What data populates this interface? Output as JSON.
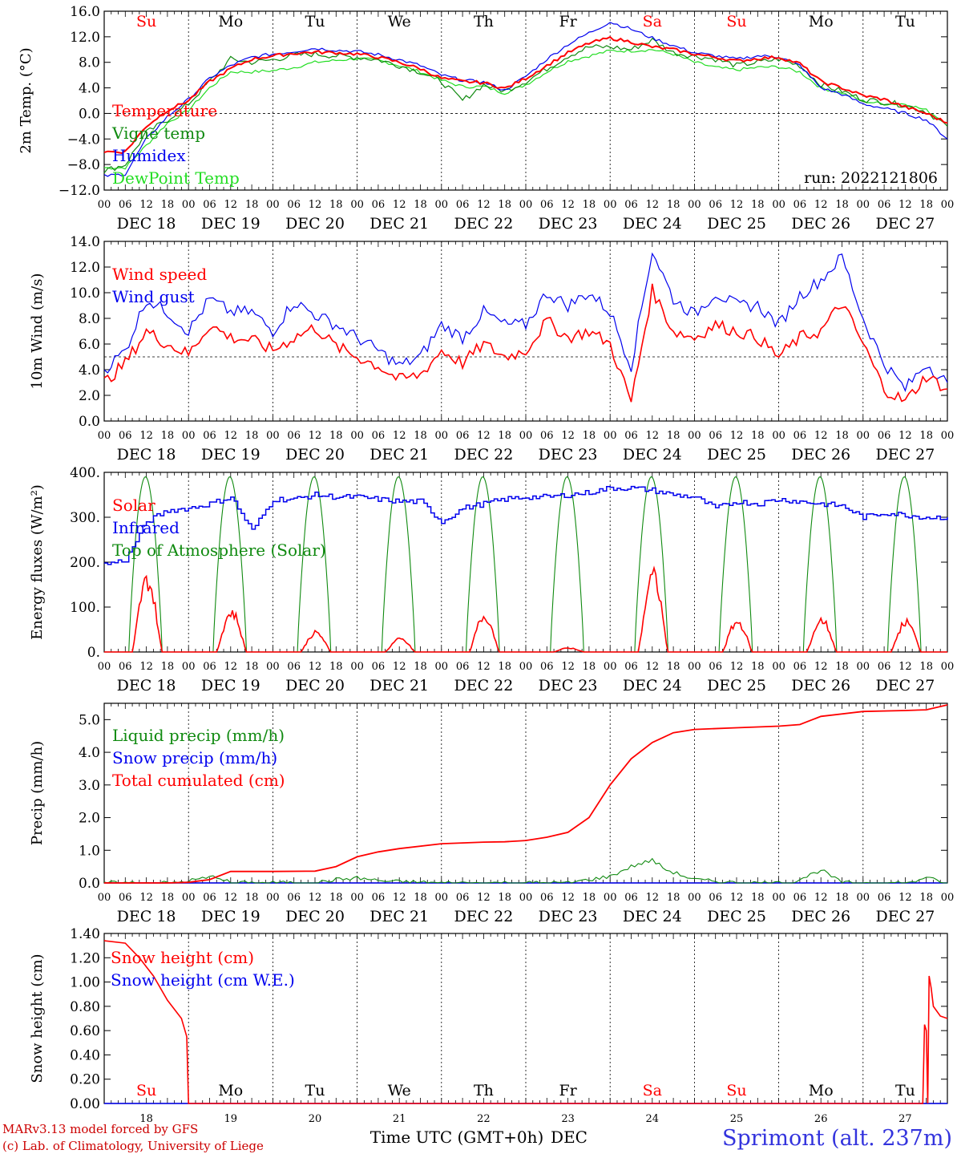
{
  "day_labels": [
    "Su",
    "Mo",
    "Tu",
    "We",
    "Th",
    "Fr",
    "Sa",
    "Su",
    "Mo",
    "Tu"
  ],
  "day_label_colors": [
    "#ff0000",
    "#000000",
    "#000000",
    "#000000",
    "#000000",
    "#000000",
    "#ff0000",
    "#ff0000",
    "#000000",
    "#000000"
  ],
  "hour_ticks": [
    "00",
    "06",
    "12",
    "18"
  ],
  "hour_ticks_end": "00",
  "date_labels": [
    "DEC 18",
    "DEC 19",
    "DEC 20",
    "DEC 21",
    "DEC 22",
    "DEC 23",
    "DEC 24",
    "DEC 25",
    "DEC 26",
    "DEC 27"
  ],
  "bottom_day_numbers": [
    "18",
    "19",
    "20",
    "21",
    "22",
    "23",
    "24",
    "25",
    "26",
    "27"
  ],
  "footer": {
    "credit_line1": "MARv3.13 model forced by GFS",
    "credit_line2": "(c) Lab. of Climatology, University of Liege",
    "xlabel": "Time UTC (GMT+0h)",
    "month": "DEC",
    "station": "Sprimont (alt. 237m)"
  },
  "colors": {
    "red": "#ff0000",
    "green": "#108a10",
    "blue": "#0000ee",
    "lightgreen": "#22dd22",
    "credit": "#cc0000",
    "station": "#3333dd"
  },
  "chart_data": [
    {
      "type": "line",
      "ylabel": "2m Temp. (°C)",
      "ylim": [
        -12,
        16
      ],
      "yticks": [
        "16.0",
        "12.0",
        "8.0",
        "4.0",
        "0.0",
        "−4.0",
        "−8.0",
        "−12.0"
      ],
      "xlim": [
        0,
        240
      ],
      "annotation": "run: 2022121806",
      "reference_line": 0,
      "series": [
        {
          "name": "Temperature",
          "color": "#ff0000",
          "x": [
            0,
            6,
            12,
            18,
            24,
            30,
            36,
            42,
            48,
            54,
            60,
            66,
            72,
            78,
            84,
            90,
            96,
            102,
            108,
            114,
            120,
            126,
            132,
            138,
            144,
            150,
            156,
            162,
            168,
            174,
            180,
            186,
            192,
            198,
            204,
            210,
            216,
            222,
            228,
            234,
            240
          ],
          "y": [
            -6,
            -6,
            -2,
            0.5,
            2,
            5,
            7,
            8.5,
            9,
            9.4,
            9.6,
            9.5,
            9.3,
            8.8,
            8,
            7,
            5.5,
            5,
            4.8,
            3.9,
            5.5,
            7.5,
            9.5,
            11,
            11.8,
            11.2,
            10.4,
            10,
            9.3,
            8.8,
            8.2,
            8.6,
            8.8,
            7.8,
            5,
            4,
            2.8,
            2.2,
            1,
            0,
            -1.5
          ]
        },
        {
          "name": "Vigne temp",
          "color": "#108a10",
          "x": [
            0,
            6,
            12,
            18,
            24,
            30,
            36,
            42,
            48,
            54,
            60,
            66,
            72,
            78,
            84,
            90,
            96,
            102,
            108,
            114,
            120,
            126,
            132,
            138,
            144,
            150,
            156,
            162,
            168,
            174,
            180,
            186,
            192,
            198,
            204,
            210,
            216,
            222,
            228,
            234,
            240
          ],
          "y": [
            -9,
            -8,
            -3,
            -1,
            1.5,
            5,
            8.5,
            8,
            8.4,
            9.1,
            9.3,
            9,
            8.8,
            8.4,
            7.5,
            6.5,
            5,
            2,
            4.5,
            3.5,
            5,
            7,
            9,
            10.4,
            10.4,
            10,
            11.5,
            9.5,
            9,
            8.5,
            7.5,
            8,
            8.5,
            7.5,
            4.5,
            3.5,
            2.2,
            1.8,
            1.3,
            0.3,
            -2
          ]
        },
        {
          "name": "Humidex",
          "color": "#0000ee",
          "x": [
            0,
            6,
            12,
            18,
            24,
            30,
            36,
            42,
            48,
            54,
            60,
            66,
            72,
            78,
            84,
            90,
            96,
            102,
            108,
            114,
            120,
            126,
            132,
            138,
            144,
            150,
            156,
            162,
            168,
            174,
            180,
            186,
            192,
            198,
            204,
            210,
            216,
            222,
            228,
            234,
            240
          ],
          "y": [
            -9.8,
            -9.5,
            -4,
            -0.5,
            2.2,
            5.5,
            7.5,
            8.8,
            9.3,
            9.7,
            10.2,
            9.9,
            9.7,
            9.2,
            8.4,
            7.5,
            6,
            5.2,
            4.9,
            3.6,
            5.8,
            8.5,
            10.8,
            12.6,
            14.3,
            13.2,
            11.8,
            10.6,
            9.5,
            9,
            8.5,
            9,
            8.9,
            7.5,
            4,
            3,
            1.5,
            0.8,
            0,
            -1,
            -4
          ]
        },
        {
          "name": "DewPoint Temp",
          "color": "#22dd22",
          "x": [
            0,
            6,
            12,
            18,
            24,
            30,
            36,
            42,
            48,
            54,
            60,
            66,
            72,
            78,
            84,
            90,
            96,
            102,
            108,
            114,
            120,
            126,
            132,
            138,
            144,
            150,
            156,
            162,
            168,
            174,
            180,
            186,
            192,
            198,
            204,
            210,
            216,
            222,
            228,
            234,
            240
          ],
          "y": [
            -8.5,
            -8.5,
            -5,
            -1.5,
            0.5,
            4,
            6.5,
            6.5,
            6.7,
            7.2,
            8,
            8.3,
            8.6,
            8.3,
            7.5,
            6.5,
            5.2,
            4.2,
            4.2,
            3.2,
            4.5,
            6.5,
            8.2,
            9,
            9.8,
            9.8,
            10,
            9.3,
            8,
            7.2,
            6.8,
            7.2,
            7.3,
            6.5,
            4,
            3.2,
            1.9,
            1.5,
            1.5,
            0.5,
            -1.5
          ]
        }
      ]
    },
    {
      "type": "line",
      "ylabel": "10m Wind (m/s)",
      "ylim": [
        0,
        14
      ],
      "yticks": [
        "14.0",
        "12.0",
        "10.0",
        "8.0",
        "6.0",
        "4.0",
        "2.0",
        "0.0"
      ],
      "xlim": [
        0,
        240
      ],
      "reference_line": 5,
      "series": [
        {
          "name": "Wind speed",
          "color": "#ff0000",
          "x": [
            0,
            6,
            12,
            18,
            24,
            30,
            36,
            42,
            48,
            54,
            60,
            66,
            72,
            78,
            84,
            90,
            96,
            102,
            108,
            114,
            120,
            126,
            132,
            138,
            144,
            150,
            156,
            162,
            168,
            174,
            180,
            186,
            192,
            198,
            204,
            210,
            216,
            222,
            228,
            234,
            240
          ],
          "y": [
            3,
            4.5,
            7,
            6,
            5.2,
            7.5,
            6.5,
            6.3,
            5.5,
            6.5,
            7.3,
            5.8,
            5,
            4.3,
            3.2,
            3.6,
            5.5,
            4.5,
            6,
            5,
            5.5,
            7.8,
            6.5,
            7,
            6,
            1.5,
            10.2,
            7,
            6.5,
            7.5,
            7,
            6.5,
            5,
            6.5,
            7,
            9.2,
            6,
            2.5,
            1.5,
            3.5,
            2.5
          ]
        },
        {
          "name": "Wind gust",
          "color": "#0000ee",
          "x": [
            0,
            6,
            12,
            18,
            24,
            30,
            36,
            42,
            48,
            54,
            60,
            66,
            72,
            78,
            84,
            90,
            96,
            102,
            108,
            114,
            120,
            126,
            132,
            138,
            144,
            150,
            156,
            162,
            168,
            174,
            180,
            186,
            192,
            198,
            204,
            210,
            216,
            222,
            228,
            234,
            240
          ],
          "y": [
            4,
            5.5,
            9.5,
            8.5,
            7,
            9.5,
            8.5,
            8.5,
            7,
            9.3,
            8.3,
            7.5,
            6.5,
            5.5,
            4.3,
            5,
            7.5,
            6.5,
            8.5,
            7.5,
            7.5,
            10,
            9,
            10,
            8.5,
            4.3,
            13.3,
            9.5,
            8.3,
            10,
            9,
            9,
            7.5,
            9.8,
            11,
            12.8,
            8,
            4.5,
            2.5,
            4.5,
            3
          ]
        }
      ]
    },
    {
      "type": "line",
      "ylabel": "Energy fluxes (W/m²)",
      "ylim": [
        0,
        400
      ],
      "yticks": [
        "400.",
        "300.",
        "200.",
        "100.",
        "0."
      ],
      "xlim": [
        0,
        240
      ],
      "series": [
        {
          "name": "Solar",
          "color": "#ff0000",
          "peaks": [
            180,
            100,
            48,
            32,
            90,
            10,
            190,
            75,
            80,
            75
          ]
        },
        {
          "name": "Infrared",
          "color": "#0000ee",
          "x": [
            0,
            6,
            12,
            18,
            24,
            30,
            36,
            42,
            48,
            54,
            60,
            66,
            72,
            78,
            84,
            90,
            96,
            102,
            108,
            114,
            120,
            126,
            132,
            138,
            144,
            150,
            156,
            162,
            168,
            174,
            180,
            186,
            192,
            198,
            204,
            210,
            216,
            222,
            228,
            234,
            240
          ],
          "y": [
            195,
            205,
            290,
            315,
            320,
            330,
            345,
            270,
            340,
            340,
            350,
            345,
            345,
            340,
            335,
            335,
            290,
            320,
            330,
            340,
            345,
            345,
            350,
            355,
            365,
            365,
            360,
            350,
            345,
            320,
            335,
            330,
            340,
            335,
            330,
            325,
            300,
            310,
            305,
            300,
            300
          ]
        },
        {
          "name": "Top of Atmosphere (Solar)",
          "color": "#108a10",
          "peak": 390
        }
      ]
    },
    {
      "type": "line",
      "ylabel": "Precip (mm/h)",
      "ylim": [
        0,
        5.5
      ],
      "yticks": [
        "5.0",
        "4.0",
        "3.0",
        "2.0",
        "1.0",
        "0.0"
      ],
      "xlim": [
        0,
        240
      ],
      "series": [
        {
          "name": "Liquid precip (mm/h)",
          "color": "#108a10",
          "x": [
            0,
            20,
            26,
            32,
            36,
            60,
            66,
            72,
            80,
            96,
            120,
            126,
            132,
            138,
            144,
            150,
            156,
            160,
            168,
            180,
            195,
            200,
            204,
            210,
            230,
            234,
            238,
            240
          ],
          "y": [
            0,
            0,
            0.1,
            0.2,
            0,
            0,
            0.1,
            0.15,
            0.05,
            0,
            0,
            0,
            0,
            0.1,
            0.2,
            0.5,
            0.7,
            0.4,
            0.1,
            0,
            0,
            0.2,
            0.4,
            0,
            0,
            0.2,
            0,
            0
          ]
        },
        {
          "name": "Snow precip (mm/h)",
          "color": "#0000ee",
          "x": [
            0,
            240
          ],
          "y": [
            0,
            0
          ]
        },
        {
          "name": "Total cumulated (cm)",
          "color": "#ff0000",
          "x": [
            0,
            18,
            24,
            30,
            36,
            48,
            60,
            66,
            72,
            78,
            84,
            96,
            108,
            114,
            120,
            126,
            132,
            138,
            144,
            150,
            156,
            162,
            168,
            180,
            192,
            198,
            204,
            216,
            228,
            234,
            240
          ],
          "y": [
            0,
            0,
            0.02,
            0.1,
            0.35,
            0.35,
            0.36,
            0.5,
            0.8,
            0.95,
            1.05,
            1.2,
            1.25,
            1.26,
            1.3,
            1.4,
            1.55,
            2.0,
            3.0,
            3.8,
            4.3,
            4.6,
            4.7,
            4.75,
            4.8,
            4.85,
            5.1,
            5.25,
            5.28,
            5.3,
            5.45
          ]
        }
      ]
    },
    {
      "type": "line",
      "ylabel": "Snow height (cm)",
      "ylim": [
        0,
        1.4
      ],
      "yticks": [
        "1.40",
        "1.20",
        "1.00",
        "0.80",
        "0.60",
        "0.40",
        "0.20",
        "0.00"
      ],
      "xlim": [
        0,
        240
      ],
      "series": [
        {
          "name": "Snow height (cm)",
          "color": "#ff0000",
          "x": [
            0,
            6,
            10,
            14,
            18,
            22,
            23.5,
            24,
            24.3,
            233,
            233.5,
            234,
            234.4,
            234.8,
            235.4,
            236,
            238,
            240
          ],
          "y": [
            1.34,
            1.32,
            1.2,
            1.05,
            0.85,
            0.7,
            0.55,
            0,
            0,
            0,
            0.65,
            0.6,
            0,
            1.05,
            0.95,
            0.8,
            0.72,
            0.7
          ]
        },
        {
          "name": "Snow height (cm W.E.)",
          "color": "#0000ee",
          "x": [
            0,
            240
          ],
          "y": [
            0,
            0
          ]
        }
      ]
    }
  ]
}
